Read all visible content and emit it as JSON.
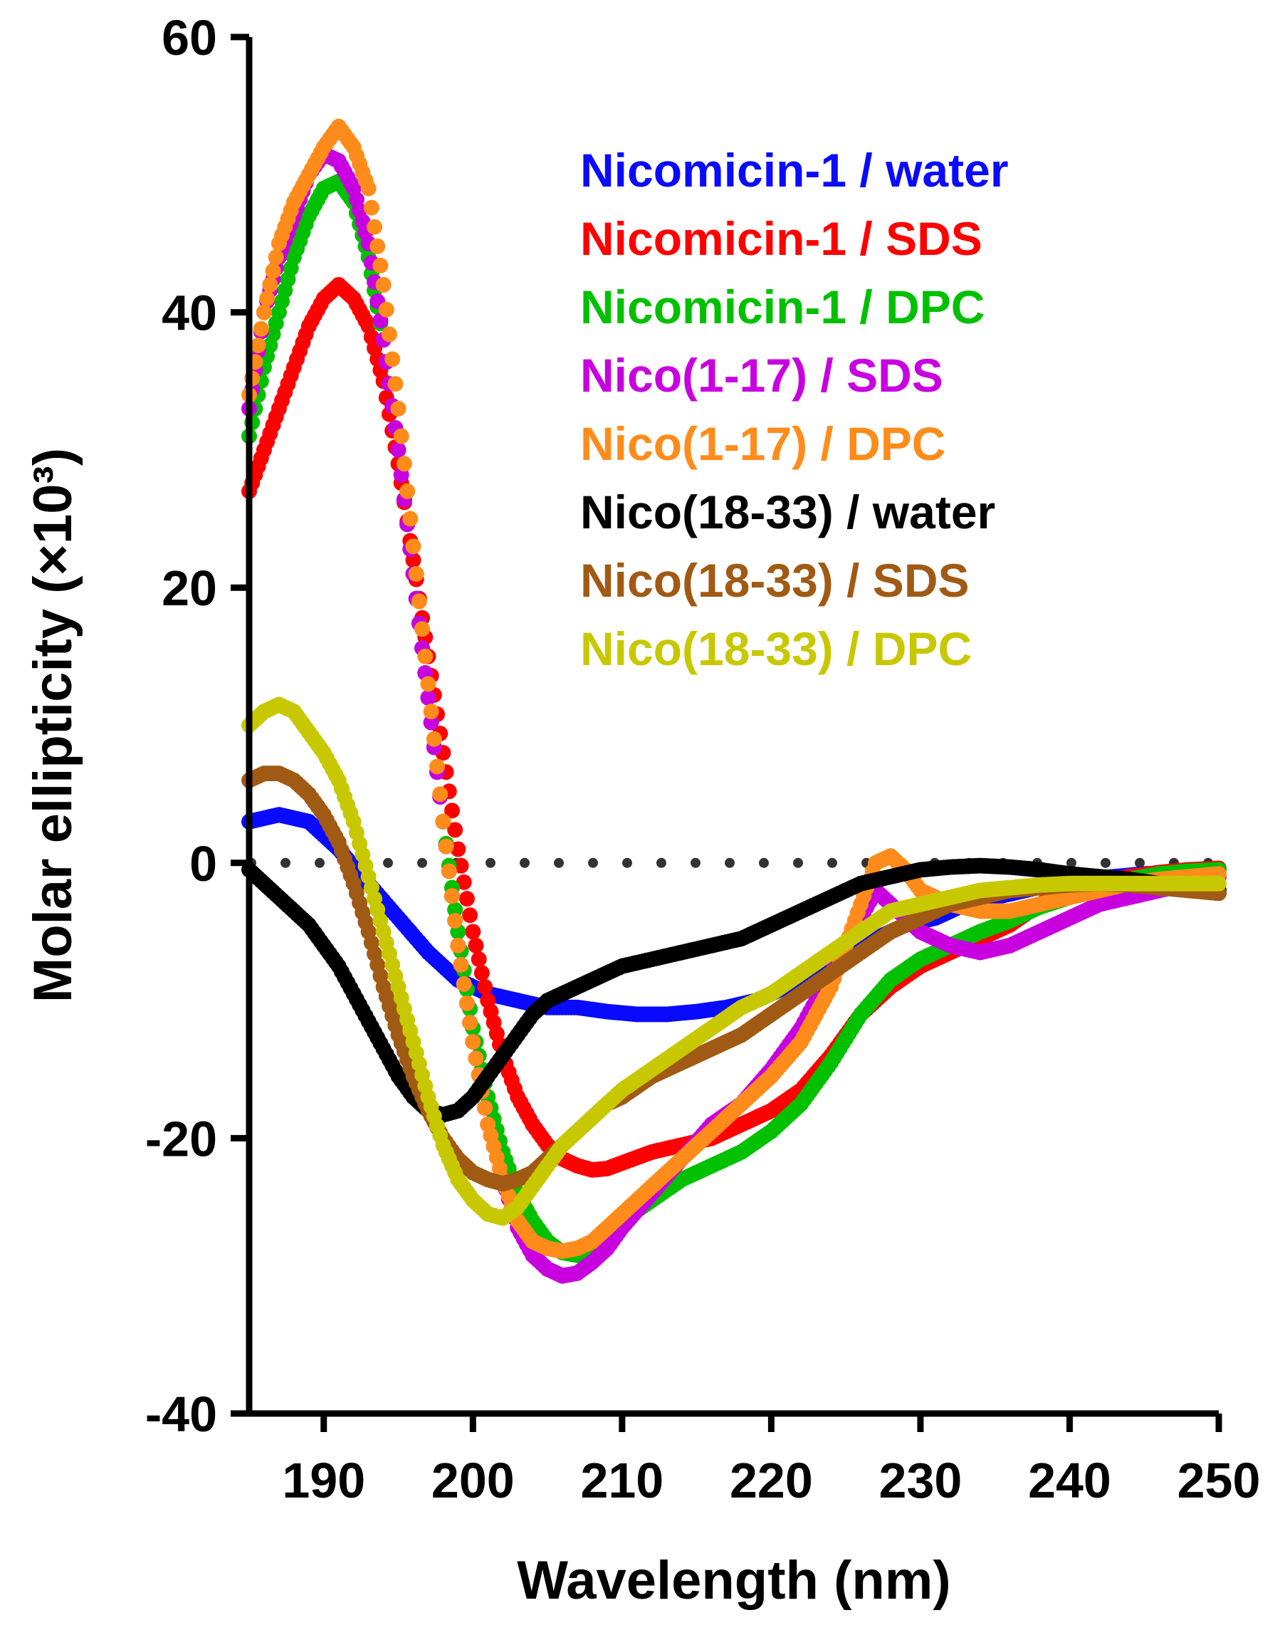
{
  "chart_data": {
    "type": "scatter",
    "title": "",
    "xlabel": "Wavelength (nm)",
    "ylabel": "Molar ellipticity (×10³)",
    "xlim": [
      185,
      250
    ],
    "ylim": [
      -40,
      60
    ],
    "xticks": [
      190,
      200,
      210,
      220,
      230,
      240,
      250
    ],
    "yticks": [
      -40,
      -20,
      0,
      20,
      40,
      60
    ],
    "x_tick_labels": [
      "190",
      "200",
      "210",
      "220",
      "230",
      "240",
      "250"
    ],
    "y_tick_labels": [
      "-40",
      "-20",
      "0",
      "20",
      "40",
      "60"
    ],
    "grid": false,
    "legend_position": "top-right",
    "zero_line": {
      "y": 0,
      "style": "dotted",
      "color": "#333333"
    },
    "series": [
      {
        "name": "Nicomicin-1 / water",
        "color": "#0a0aff",
        "x": [
          185,
          187,
          189,
          191,
          193,
          195,
          197,
          199,
          201,
          203,
          205,
          207,
          209,
          211,
          213,
          215,
          217,
          219,
          221,
          223,
          225,
          227,
          229,
          231,
          233,
          235,
          237,
          239,
          241,
          243,
          245,
          247,
          249,
          250
        ],
        "y": [
          3,
          3.5,
          3,
          1,
          -1.5,
          -4,
          -6.5,
          -8.5,
          -9.5,
          -10,
          -10.5,
          -10.5,
          -10.8,
          -11,
          -11,
          -10.8,
          -10.5,
          -10,
          -9,
          -8,
          -6.5,
          -5.5,
          -4.5,
          -4,
          -3,
          -2.5,
          -2,
          -1.5,
          -1.2,
          -1,
          -0.8,
          -0.7,
          -0.6,
          -0.5
        ]
      },
      {
        "name": "Nicomicin-1 / SDS",
        "color": "#ff0000",
        "x": [
          185,
          186,
          187,
          188,
          189,
          190,
          191,
          192,
          193,
          194,
          195,
          196,
          197,
          198,
          199,
          200,
          201,
          202,
          203,
          204,
          205,
          206,
          207,
          208,
          209,
          210,
          212,
          214,
          216,
          218,
          220,
          222,
          224,
          226,
          228,
          230,
          232,
          234,
          236,
          238,
          240,
          242,
          244,
          246,
          248,
          250
        ],
        "y": [
          27,
          30,
          33,
          36,
          39,
          41,
          42,
          41,
          39,
          35,
          29,
          22,
          15,
          8,
          1,
          -5,
          -10,
          -14,
          -17,
          -19,
          -20.5,
          -21.5,
          -22,
          -22.3,
          -22.2,
          -21.8,
          -21,
          -20.5,
          -20,
          -19,
          -18,
          -16.5,
          -14,
          -11,
          -9,
          -7.5,
          -6.5,
          -5.5,
          -4.5,
          -3,
          -2,
          -1.5,
          -1,
          -0.7,
          -0.5,
          -0.4
        ]
      },
      {
        "name": "Nicomicin-1 / DPC",
        "color": "#00c000",
        "x": [
          185,
          186,
          187,
          188,
          189,
          190,
          191,
          192,
          193,
          194,
          195,
          196,
          197,
          198,
          199,
          200,
          201,
          202,
          203,
          204,
          205,
          206,
          207,
          208,
          209,
          210,
          212,
          214,
          216,
          218,
          220,
          222,
          224,
          226,
          228,
          230,
          232,
          234,
          236,
          238,
          240,
          242,
          244,
          246,
          248,
          250
        ],
        "y": [
          31,
          36,
          40,
          44,
          47,
          49,
          49.5,
          48,
          44,
          38,
          30,
          21,
          12,
          3,
          -5,
          -12,
          -17,
          -21,
          -24,
          -26,
          -27.5,
          -28.3,
          -28.5,
          -28,
          -27,
          -26,
          -24.5,
          -23,
          -22,
          -21,
          -19.5,
          -17.5,
          -14.5,
          -11,
          -8.5,
          -7,
          -6,
          -5,
          -4.2,
          -3.2,
          -2.5,
          -1.8,
          -1.2,
          -0.8,
          -0.6,
          -0.5
        ]
      },
      {
        "name": "Nico(1-17) / SDS",
        "color": "#c800e0",
        "x": [
          185,
          186,
          187,
          188,
          189,
          190,
          191,
          192,
          193,
          194,
          195,
          196,
          197,
          198,
          199,
          200,
          201,
          202,
          203,
          204,
          205,
          206,
          207,
          208,
          209,
          210,
          212,
          214,
          216,
          218,
          220,
          222,
          224,
          226,
          227,
          228,
          229,
          230,
          232,
          234,
          236,
          238,
          240,
          242,
          244,
          246,
          248,
          250
        ],
        "y": [
          33,
          40,
          44,
          47,
          50,
          51.5,
          51,
          49,
          45,
          38,
          30,
          21,
          12,
          3,
          -6,
          -13,
          -19,
          -23,
          -26.5,
          -28.5,
          -29.5,
          -30,
          -29.8,
          -29,
          -28,
          -26.5,
          -24,
          -21.5,
          -19,
          -17.5,
          -15,
          -12,
          -8,
          -4,
          -2,
          -3,
          -4,
          -5,
          -6,
          -6.5,
          -6,
          -5,
          -4,
          -3,
          -2.5,
          -2,
          -1.5,
          -1
        ]
      },
      {
        "name": "Nico(1-17) / DPC",
        "color": "#ff8c1a",
        "x": [
          185,
          186,
          187,
          188,
          189,
          190,
          191,
          192,
          193,
          194,
          195,
          196,
          197,
          198,
          199,
          200,
          201,
          202,
          203,
          204,
          205,
          206,
          207,
          208,
          209,
          210,
          212,
          214,
          216,
          218,
          220,
          222,
          224,
          226,
          227,
          228,
          229,
          230,
          232,
          234,
          236,
          238,
          240,
          242,
          244,
          246,
          248,
          250
        ],
        "y": [
          34,
          40,
          45,
          48,
          50,
          52,
          53.5,
          52,
          49,
          42,
          33,
          23,
          13,
          3,
          -6,
          -13,
          -19,
          -23,
          -26,
          -27.5,
          -28,
          -28.2,
          -28,
          -27.5,
          -26.5,
          -25.5,
          -23.5,
          -21.5,
          -19.5,
          -17.5,
          -15.5,
          -13,
          -9,
          -3,
          0,
          0.5,
          -0.5,
          -2,
          -3,
          -3.5,
          -3.5,
          -3,
          -2.5,
          -2,
          -1.5,
          -1.2,
          -1,
          -0.8
        ]
      },
      {
        "name": "Nico(18-33) / water",
        "color": "#000000",
        "x": [
          185,
          186,
          187,
          188,
          189,
          190,
          191,
          192,
          193,
          194,
          195,
          196,
          197,
          198,
          199,
          200,
          201,
          202,
          203,
          204,
          205,
          206,
          207,
          208,
          209,
          210,
          212,
          214,
          216,
          218,
          220,
          222,
          224,
          226,
          228,
          230,
          232,
          234,
          236,
          238,
          240,
          242,
          244,
          246,
          248,
          250
        ],
        "y": [
          -0.5,
          -1.5,
          -2.5,
          -3.5,
          -4.5,
          -6,
          -7.5,
          -9.5,
          -11.5,
          -13.5,
          -15.5,
          -17,
          -18,
          -18.3,
          -18,
          -17,
          -15.5,
          -14,
          -12.5,
          -11,
          -10,
          -9.5,
          -9,
          -8.5,
          -8,
          -7.5,
          -7,
          -6.5,
          -6,
          -5.5,
          -4.5,
          -3.5,
          -2.5,
          -1.5,
          -1,
          -0.5,
          -0.3,
          -0.2,
          -0.3,
          -0.5,
          -0.8,
          -1,
          -1.2,
          -1.5,
          -1.8,
          -2
        ]
      },
      {
        "name": "Nico(18-33) / SDS",
        "color": "#a05a14",
        "x": [
          185,
          186,
          187,
          188,
          189,
          190,
          191,
          192,
          193,
          194,
          195,
          196,
          197,
          198,
          199,
          200,
          201,
          202,
          203,
          204,
          205,
          206,
          207,
          208,
          209,
          210,
          212,
          214,
          216,
          218,
          220,
          222,
          224,
          226,
          228,
          230,
          232,
          234,
          236,
          238,
          240,
          242,
          244,
          246,
          248,
          250
        ],
        "y": [
          6,
          6.5,
          6.5,
          6,
          5,
          3.5,
          1.5,
          -1.5,
          -5,
          -9,
          -12.5,
          -15.5,
          -18,
          -20,
          -21.5,
          -22.5,
          -23,
          -23.3,
          -23,
          -22.5,
          -21.5,
          -20.5,
          -19.5,
          -18.5,
          -17.5,
          -17,
          -15.5,
          -14.5,
          -13.5,
          -12.5,
          -11,
          -9.5,
          -8,
          -6.5,
          -5,
          -4,
          -3,
          -2.5,
          -2,
          -1.8,
          -1.6,
          -1.5,
          -1.6,
          -1.8,
          -2,
          -2.2
        ]
      },
      {
        "name": "Nico(18-33) / DPC",
        "color": "#c8c800",
        "x": [
          185,
          186,
          187,
          188,
          189,
          190,
          191,
          192,
          193,
          194,
          195,
          196,
          197,
          198,
          199,
          200,
          201,
          202,
          203,
          204,
          205,
          206,
          207,
          208,
          209,
          210,
          212,
          214,
          216,
          218,
          220,
          222,
          224,
          226,
          228,
          230,
          232,
          234,
          236,
          238,
          240,
          242,
          244,
          246,
          248,
          250
        ],
        "y": [
          10,
          11,
          11.5,
          11,
          9.5,
          8,
          6,
          3,
          -1,
          -5,
          -9,
          -13,
          -17,
          -20.5,
          -23,
          -24.5,
          -25.5,
          -25.8,
          -25,
          -23.5,
          -22,
          -20.5,
          -19.5,
          -18.5,
          -17.5,
          -16.5,
          -15,
          -13.5,
          -12,
          -10.5,
          -9.5,
          -8,
          -6.5,
          -5,
          -3.5,
          -3,
          -2.5,
          -2,
          -1.8,
          -1.6,
          -1.5,
          -1.5,
          -1.5,
          -1.5,
          -1.5,
          -1.5
        ]
      }
    ]
  }
}
